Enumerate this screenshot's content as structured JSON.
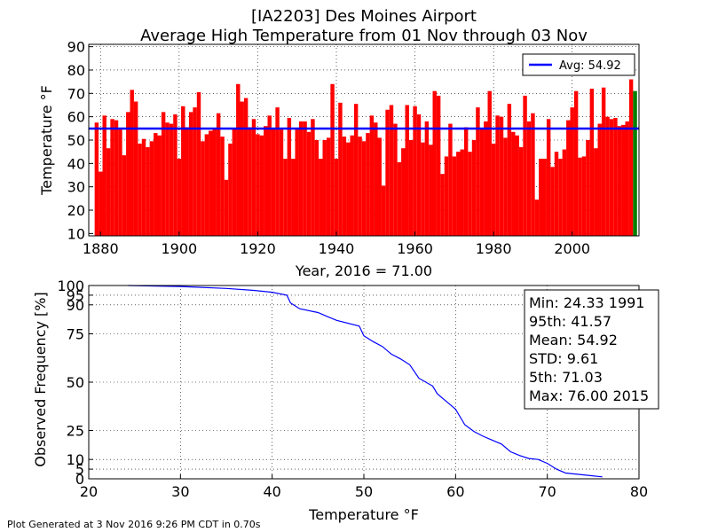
{
  "title_line1": "[IA2203] Des Moines Airport",
  "title_line2": "Average High Temperature from 01 Nov through 03 Nov",
  "footer": "Plot Generated at 3 Nov 2016 9:26 PM CDT in 0.70s",
  "colors": {
    "bar": "#ff0000",
    "bar_current": "#008000",
    "avg_line": "#0000ff",
    "curve": "#0000ff"
  },
  "chart_data": [
    {
      "type": "bar",
      "ylabel": "Temperature °F",
      "xlabel": "Year, 2016 = 71.00",
      "xlim": [
        1877,
        2017
      ],
      "ylim": [
        9,
        91
      ],
      "x_ticks": [
        1880,
        1900,
        1920,
        1940,
        1960,
        1980,
        2000
      ],
      "y_ticks": [
        10,
        20,
        30,
        40,
        50,
        60,
        70,
        80,
        90
      ],
      "grid": true,
      "legend_position": "top-right",
      "avg_label": "Avg: 54.92",
      "avg_value": 54.92,
      "current_year": 2016,
      "current_value": 71.0,
      "x": [
        1879,
        1880,
        1881,
        1882,
        1883,
        1884,
        1885,
        1886,
        1887,
        1888,
        1889,
        1890,
        1891,
        1892,
        1893,
        1894,
        1895,
        1896,
        1897,
        1898,
        1899,
        1900,
        1901,
        1902,
        1903,
        1904,
        1905,
        1906,
        1907,
        1908,
        1909,
        1910,
        1911,
        1912,
        1913,
        1914,
        1915,
        1916,
        1917,
        1918,
        1919,
        1920,
        1921,
        1922,
        1923,
        1924,
        1925,
        1926,
        1927,
        1928,
        1929,
        1930,
        1931,
        1932,
        1933,
        1934,
        1935,
        1936,
        1937,
        1938,
        1939,
        1940,
        1941,
        1942,
        1943,
        1944,
        1945,
        1946,
        1947,
        1948,
        1949,
        1950,
        1951,
        1952,
        1953,
        1954,
        1955,
        1956,
        1957,
        1958,
        1959,
        1960,
        1961,
        1962,
        1963,
        1964,
        1965,
        1966,
        1967,
        1968,
        1969,
        1970,
        1971,
        1972,
        1973,
        1974,
        1975,
        1976,
        1977,
        1978,
        1979,
        1980,
        1981,
        1982,
        1983,
        1984,
        1985,
        1986,
        1987,
        1988,
        1989,
        1990,
        1991,
        1992,
        1993,
        1994,
        1995,
        1996,
        1997,
        1998,
        1999,
        2000,
        2001,
        2002,
        2003,
        2004,
        2005,
        2006,
        2007,
        2008,
        2009,
        2010,
        2011,
        2012,
        2013,
        2014,
        2015,
        2016
      ],
      "values": [
        57.5,
        36.5,
        60.5,
        46.5,
        59.0,
        58.5,
        54.5,
        43.5,
        62.0,
        71.5,
        66.5,
        48.5,
        50.5,
        47.0,
        49.5,
        53.0,
        52.0,
        62.0,
        57.5,
        57.0,
        61.0,
        42.0,
        64.5,
        55.5,
        62.0,
        64.0,
        70.5,
        49.5,
        52.5,
        54.0,
        55.0,
        61.5,
        51.5,
        33.0,
        48.5,
        55.0,
        74.0,
        66.5,
        68.0,
        55.5,
        59.0,
        52.5,
        52.0,
        56.0,
        60.5,
        55.0,
        64.0,
        54.5,
        42.0,
        59.5,
        42.0,
        54.5,
        58.0,
        58.0,
        53.5,
        59.0,
        50.0,
        42.0,
        50.0,
        51.0,
        74.0,
        42.0,
        66.0,
        51.5,
        49.0,
        52.0,
        65.5,
        51.5,
        49.5,
        53.0,
        60.5,
        57.5,
        51.0,
        30.5,
        63.0,
        65.0,
        57.0,
        40.5,
        46.5,
        65.0,
        50.0,
        64.5,
        61.0,
        49.0,
        58.0,
        48.0,
        71.0,
        69.0,
        35.5,
        43.0,
        57.0,
        43.0,
        45.0,
        46.0,
        55.5,
        45.0,
        50.0,
        64.0,
        55.0,
        58.0,
        71.0,
        48.5,
        60.5,
        60.0,
        51.0,
        65.5,
        53.5,
        52.0,
        47.0,
        69.0,
        58.0,
        61.5,
        24.5,
        42.0,
        42.0,
        59.0,
        38.5,
        45.0,
        42.0,
        46.0,
        58.5,
        64.0,
        71.0,
        42.5,
        43.0,
        50.0,
        72.0,
        46.5,
        57.0,
        72.5,
        60.0,
        59.0,
        59.5,
        56.0,
        56.5,
        58.0,
        76.0,
        71.0
      ]
    },
    {
      "type": "line",
      "xlabel": "Temperature °F",
      "ylabel": "Observed Frequency [%]",
      "xlim": [
        20,
        80
      ],
      "ylim": [
        0,
        100
      ],
      "x_ticks": [
        20,
        30,
        40,
        50,
        60,
        70,
        80
      ],
      "y_ticks": [
        0,
        5,
        10,
        25,
        50,
        75,
        90,
        95,
        100
      ],
      "grid": true,
      "stats": [
        "Min: 24.33 1991",
        "95th: 41.57",
        "Mean: 54.92",
        "STD: 9.61",
        "5th: 71.03",
        "Max: 76.00 2015"
      ],
      "x": [
        24.3,
        30.0,
        35.0,
        38.0,
        40.0,
        41.6,
        42.0,
        43.0,
        45.0,
        46.0,
        47.0,
        49.5,
        50.0,
        51.0,
        52.0,
        53.0,
        54.0,
        55.0,
        56.0,
        57.5,
        58.0,
        59.0,
        60.0,
        61.0,
        62.0,
        63.0,
        64.0,
        65.0,
        66.0,
        67.0,
        68.0,
        69.0,
        70.0,
        71.0,
        72.0,
        74.0,
        76.0
      ],
      "y": [
        100,
        99.5,
        98.5,
        97.5,
        96.5,
        95.0,
        91.0,
        88.0,
        86.0,
        84.0,
        82.0,
        79.0,
        74.0,
        71.0,
        68.5,
        64.5,
        62.0,
        59.0,
        52.0,
        48.0,
        44.0,
        40.0,
        36.0,
        28.0,
        24.5,
        22.0,
        20.0,
        18.0,
        14.0,
        12.0,
        10.5,
        10.0,
        8.0,
        5.0,
        3.0,
        2.0,
        1.0
      ]
    }
  ]
}
